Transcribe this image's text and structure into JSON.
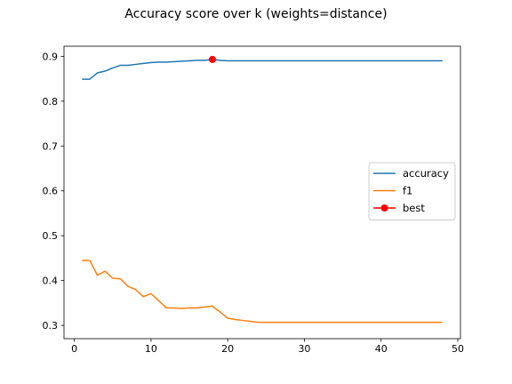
{
  "chart_data": {
    "type": "line",
    "title": "Accuracy score over k (weights=distance)",
    "xlabel": "",
    "ylabel": "",
    "xlim": [
      -1.35,
      50.35
    ],
    "ylim": [
      0.2705,
      0.9225
    ],
    "xticks": [
      0,
      10,
      20,
      30,
      40,
      50
    ],
    "yticks": [
      0.3,
      0.4,
      0.5,
      0.6,
      0.7,
      0.8,
      0.9
    ],
    "ytick_labels": [
      "0.3",
      "0.4",
      "0.5",
      "0.6",
      "0.7",
      "0.8",
      "0.9"
    ],
    "xtick_labels": [
      "0",
      "10",
      "20",
      "30",
      "40",
      "50"
    ],
    "grid": false,
    "legend_position": "center-right",
    "series": [
      {
        "name": "accuracy",
        "color": "#1f77b4",
        "x": [
          1,
          2,
          3,
          4,
          5,
          6,
          7,
          8,
          9,
          10,
          11,
          12,
          13,
          14,
          15,
          16,
          17,
          18,
          19,
          20,
          21,
          22,
          23,
          24,
          25,
          26,
          27,
          28,
          29,
          30,
          31,
          32,
          33,
          34,
          35,
          36,
          37,
          38,
          39,
          40,
          41,
          42,
          43,
          44,
          45,
          46,
          47,
          48
        ],
        "y": [
          0.849,
          0.849,
          0.863,
          0.867,
          0.874,
          0.88,
          0.88,
          0.882,
          0.884,
          0.886,
          0.887,
          0.887,
          0.888,
          0.889,
          0.89,
          0.891,
          0.891,
          0.893,
          0.891,
          0.89,
          0.89,
          0.89,
          0.89,
          0.89,
          0.89,
          0.89,
          0.89,
          0.89,
          0.89,
          0.89,
          0.89,
          0.89,
          0.89,
          0.89,
          0.89,
          0.89,
          0.89,
          0.89,
          0.89,
          0.89,
          0.89,
          0.89,
          0.89,
          0.89,
          0.89,
          0.89,
          0.89,
          0.89
        ]
      },
      {
        "name": "f1",
        "color": "#ff7f0e",
        "x": [
          1,
          2,
          3,
          4,
          5,
          6,
          7,
          8,
          9,
          10,
          11,
          12,
          13,
          14,
          15,
          16,
          17,
          18,
          19,
          20,
          21,
          22,
          23,
          24,
          25,
          26,
          27,
          28,
          29,
          30,
          31,
          32,
          33,
          34,
          35,
          36,
          37,
          38,
          39,
          40,
          41,
          42,
          43,
          44,
          45,
          46,
          47,
          48
        ],
        "y": [
          0.445,
          0.445,
          0.412,
          0.421,
          0.405,
          0.404,
          0.387,
          0.38,
          0.364,
          0.371,
          0.355,
          0.339,
          0.339,
          0.338,
          0.339,
          0.339,
          0.341,
          0.343,
          0.33,
          0.316,
          0.313,
          0.311,
          0.309,
          0.307,
          0.307,
          0.307,
          0.307,
          0.307,
          0.307,
          0.307,
          0.307,
          0.307,
          0.307,
          0.307,
          0.307,
          0.307,
          0.307,
          0.307,
          0.307,
          0.307,
          0.307,
          0.307,
          0.307,
          0.307,
          0.307,
          0.307,
          0.307,
          0.307
        ]
      },
      {
        "name": "best",
        "color": "#ff0000",
        "marker": "circle",
        "x": [
          18
        ],
        "y": [
          0.893
        ]
      }
    ]
  }
}
